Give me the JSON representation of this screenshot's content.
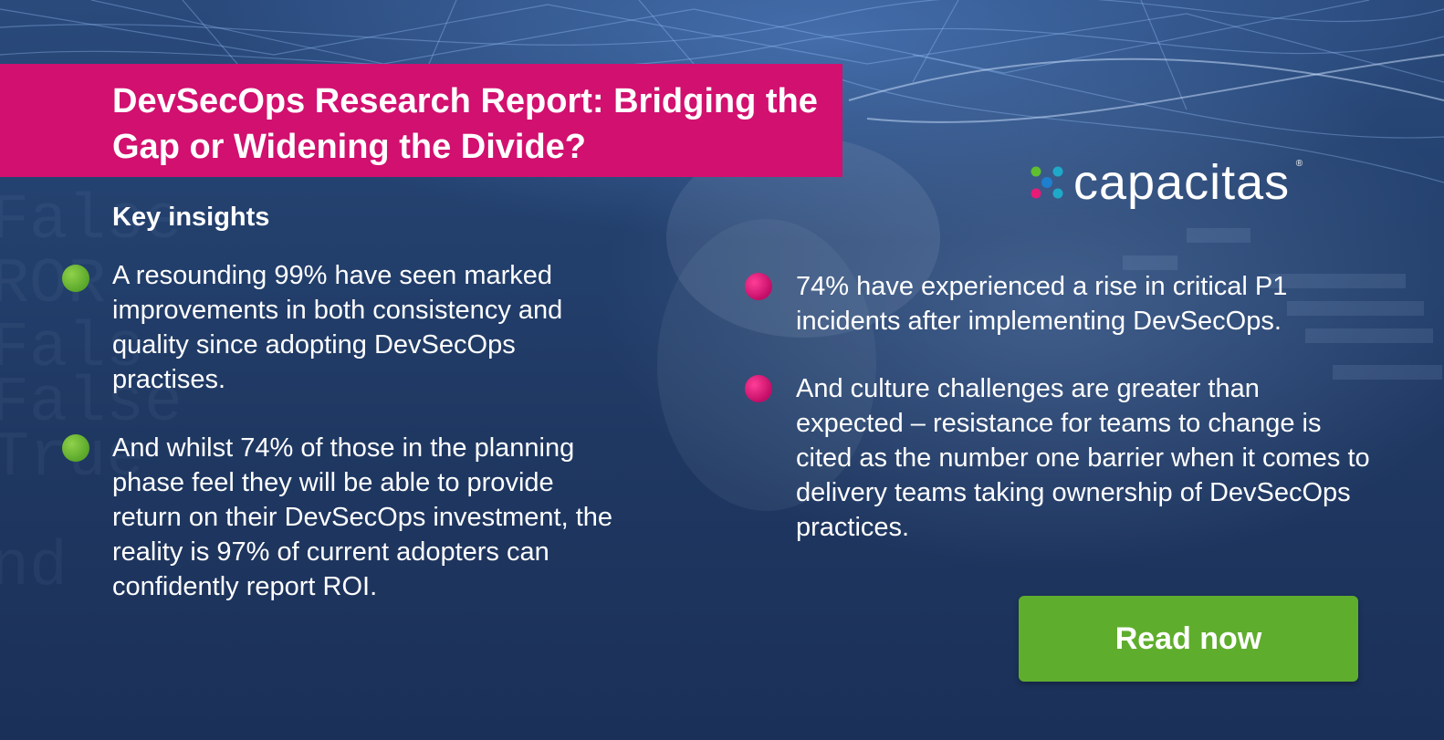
{
  "header": {
    "title": "DevSecOps Research Report: Bridging the Gap or Widening the Divide?"
  },
  "brand": {
    "logo_text": "capacitas",
    "registered_mark": "®"
  },
  "insights": {
    "heading": "Key insights",
    "left": [
      "A resounding 99% have seen marked improvements in both consistency and quality since adopting DevSecOps practises.",
      "And whilst 74% of those in the planning phase feel they will be able to provide return on their DevSecOps investment, the reality is 97% of current adopters can confidently report ROI."
    ],
    "right": [
      "74% have experienced a rise in critical P1 incidents after implementing DevSecOps.",
      "And culture challenges are greater than expected – resistance for teams to change is cited as the number one barrier when it comes to delivery teams taking ownership of DevSecOps practices."
    ]
  },
  "cta": {
    "label": "Read now"
  },
  "colors": {
    "accent_pink": "#d1106f",
    "accent_green": "#5fad2d",
    "background_navy": "#1f3862"
  },
  "icons": {
    "left_bullet": "green-dot-icon",
    "right_bullet": "pink-dot-icon",
    "logo_mark": "capacitas-x-logo-icon"
  }
}
